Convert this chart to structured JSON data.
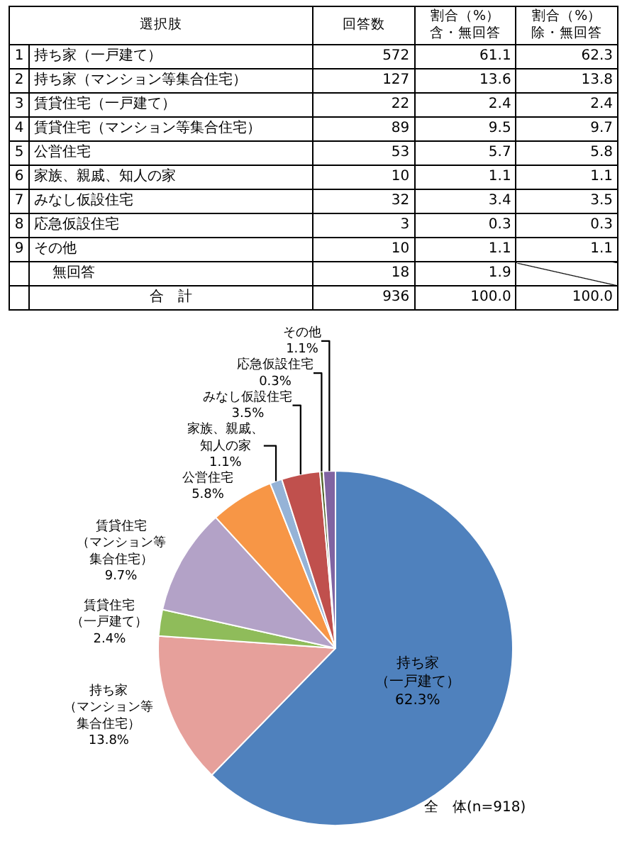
{
  "chart_data": [
    {
      "type": "other",
      "xlabel": "選択肢",
      "categories": [
        "持ち家（一戸建て）",
        "持ち家（マンション等集合住宅）",
        "賃貸住宅（一戸建て）",
        "賃貸住宅（マンション等集合住宅）",
        "公営住宅",
        "家族、親戚、知人の家",
        "みなし仮設住宅",
        "応急仮設住宅",
        "その他",
        "無回答",
        "合　計"
      ],
      "series": [
        {
          "values": [
            1,
            2,
            3,
            4,
            5,
            6,
            7,
            8,
            9,
            null,
            null
          ],
          "value_labels": [
            "1",
            "2",
            "3",
            "4",
            "5",
            "6",
            "7",
            "8",
            "9",
            null,
            null
          ]
        },
        {
          "name": "回答数",
          "values": [
            572,
            127,
            22,
            89,
            53,
            10,
            32,
            3,
            10,
            18,
            936
          ],
          "value_labels": [
            "572",
            "127",
            "22",
            "89",
            "53",
            "10",
            "32",
            "3",
            "10",
            "18",
            "936"
          ]
        },
        {
          "name": "割合（%）含・無回答",
          "values": [
            61.1,
            13.6,
            2.4,
            9.5,
            5.7,
            1.1,
            3.4,
            0.3,
            1.1,
            1.9,
            100
          ],
          "value_labels": [
            "61.1",
            "13.6",
            "2.4",
            "9.5",
            "5.7",
            "1.1",
            "3.4",
            "0.3",
            "1.1",
            "1.9",
            "100.0"
          ]
        },
        {
          "name": "割合（%）除・無回答",
          "values": [
            62.3,
            13.8,
            2.4,
            9.7,
            5.8,
            1.1,
            3.5,
            0.3,
            1.1,
            null,
            100
          ],
          "value_labels": [
            "62.3",
            "13.8",
            "2.4",
            "9.7",
            "5.8",
            "1.1",
            "3.5",
            "0.3",
            "1.1",
            null,
            "100.0"
          ]
        }
      ]
    },
    {
      "type": "pie",
      "categories": [
        "持ち家（一戸建て）",
        "持ち家（マンション等集合住宅）",
        "賃貸住宅（一戸建て）",
        "賃貸住宅（マンション等集合住宅）",
        "公営住宅",
        "家族、親戚、知人の家",
        "みなし仮設住宅",
        "応急仮設住宅",
        "その他"
      ],
      "values": [
        62.3,
        13.8,
        2.4,
        9.7,
        5.8,
        1.1,
        3.5,
        0.3,
        1.1
      ],
      "value_labels": [
        "62.3%",
        "13.8%",
        "2.4%",
        "9.7%",
        "5.8%",
        "1.1%",
        "3.5%",
        "0.3%",
        "1.1%"
      ],
      "colors": [
        "#4f81bd",
        "#e6a09b",
        "#8fbc5a",
        "#b3a2c7",
        "#f79646",
        "#95b3d7",
        "#c0504d",
        "#4f6228",
        "#8064a2"
      ],
      "annotations": [
        "全　体(n=918)"
      ]
    }
  ]
}
